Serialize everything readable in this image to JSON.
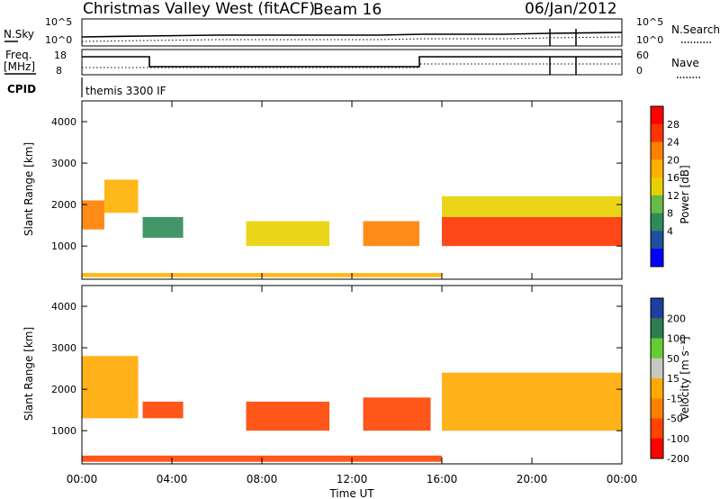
{
  "header": {
    "title": "Christmas Valley West (fitACF)",
    "beam": "Beam 16",
    "date": "06/Jan/2012"
  },
  "top_panels": {
    "nsky_label": "N.Sky",
    "nsky_ticks": [
      "10^5",
      "10^0"
    ],
    "nsearch_label": "N.Search",
    "nsearch_ticks": [
      "10^5",
      "10^0"
    ],
    "freq_label": "Freq.",
    "freq_unit": "[MHz]",
    "freq_ticks": [
      "18",
      "8"
    ],
    "nave_label": "Nave",
    "nave_ticks": [
      "60",
      "0"
    ],
    "cpid_label": "CPID",
    "cpid_value": "themis 3300 IF"
  },
  "chart_data": [
    {
      "type": "heatmap",
      "name": "power-panel",
      "ylabel": "Slant Range [km]",
      "y_ticks": [
        "4000",
        "3000",
        "2000",
        "1000"
      ],
      "ylim": [
        200,
        4500
      ],
      "xlim": [
        0,
        24
      ],
      "x_ticks": [
        "00:00",
        "04:00",
        "08:00",
        "12:00",
        "16:00",
        "20:00",
        "00:00"
      ],
      "colorbar": {
        "label": "Power [dB]",
        "ticks": [
          "28",
          "24",
          "20",
          "16",
          "12",
          "8",
          "4"
        ],
        "colors": [
          "#ff0000",
          "#ff3300",
          "#ff8000",
          "#ffb000",
          "#e8d000",
          "#66bb44",
          "#2e8b57",
          "#1e4fa0",
          "#0000ff"
        ]
      },
      "regions": [
        {
          "t0": 0.0,
          "t1": 1.0,
          "r0": 1400,
          "r1": 2100,
          "value": 24
        },
        {
          "t0": 1.0,
          "t1": 2.5,
          "r0": 1800,
          "r1": 2600,
          "value": 20
        },
        {
          "t0": 2.7,
          "t1": 4.5,
          "r0": 1200,
          "r1": 1700,
          "value": 6
        },
        {
          "t0": 7.3,
          "t1": 11.0,
          "r0": 1000,
          "r1": 1600,
          "value": 14
        },
        {
          "t0": 12.5,
          "t1": 15.0,
          "r0": 1000,
          "r1": 1600,
          "value": 22
        },
        {
          "t0": 16.0,
          "t1": 24.0,
          "r0": 1000,
          "r1": 1700,
          "value": 28
        },
        {
          "t0": 16.0,
          "t1": 24.0,
          "r0": 1700,
          "r1": 2200,
          "value": 16
        },
        {
          "t0": 0.0,
          "t1": 16.0,
          "r0": 250,
          "r1": 350,
          "value": 18
        }
      ]
    },
    {
      "type": "heatmap",
      "name": "velocity-panel",
      "ylabel": "Slant Range [km]",
      "xlabel": "Time UT",
      "y_ticks": [
        "4000",
        "3000",
        "2000",
        "1000"
      ],
      "ylim": [
        200,
        4500
      ],
      "xlim": [
        0,
        24
      ],
      "x_ticks": [
        "00:00",
        "04:00",
        "08:00",
        "12:00",
        "16:00",
        "20:00",
        "00:00"
      ],
      "colorbar": {
        "label": "Velocity [m s⁻¹]",
        "ticks": [
          "200",
          "100",
          "50",
          "15",
          "-15",
          "-50",
          "-100",
          "-200"
        ],
        "colors": [
          "#1e3fa0",
          "#2e7d4f",
          "#66cc33",
          "#c8c8c0",
          "#ffaa00",
          "#ff8000",
          "#ff4400",
          "#ff0000"
        ]
      },
      "regions": [
        {
          "t0": 0.0,
          "t1": 2.5,
          "r0": 1300,
          "r1": 2800,
          "value": 0
        },
        {
          "t0": 2.7,
          "t1": 4.5,
          "r0": 1300,
          "r1": 1700,
          "value": -40
        },
        {
          "t0": 7.3,
          "t1": 11.0,
          "r0": 1000,
          "r1": 1700,
          "value": -60
        },
        {
          "t0": 12.5,
          "t1": 15.5,
          "r0": 1000,
          "r1": 1800,
          "value": -50
        },
        {
          "t0": 16.0,
          "t1": 24.0,
          "r0": 1000,
          "r1": 2400,
          "value": 0
        },
        {
          "t0": 0.0,
          "t1": 16.0,
          "r0": 250,
          "r1": 400,
          "value": -40
        }
      ]
    }
  ]
}
